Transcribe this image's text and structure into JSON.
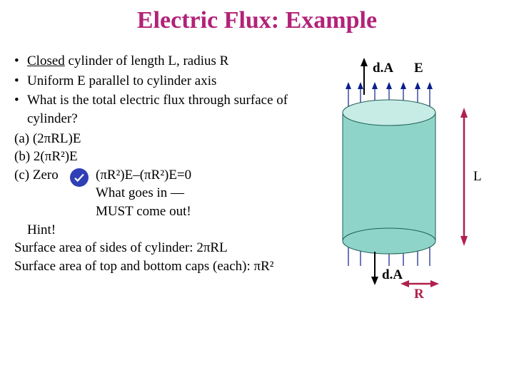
{
  "title": {
    "text": "Electric Flux: Example",
    "color": "#b22278"
  },
  "bullets": [
    {
      "pre": "Closed",
      "rest": " cylinder of length L, radius R"
    },
    {
      "pre": "",
      "rest": "Uniform E parallel to cylinder axis"
    },
    {
      "pre": "",
      "rest": "What is the total electric flux through surface of cylinder?"
    }
  ],
  "options": {
    "a": "(a) (2πRL)E",
    "b": "(b) 2(πR²)E",
    "c_label": "(c) Zero",
    "c_explain1": "(πR²)E–(πR²)E=0",
    "c_explain2": "What goes in —",
    "c_explain3": "MUST come out!"
  },
  "hint": {
    "label": "Hint!",
    "line1": "Surface area of sides of cylinder: 2πRL",
    "line2": "Surface area of top and bottom caps (each): πR²"
  },
  "diagram": {
    "dA_top": "d.A",
    "E": "E",
    "dA_bottom": "d.A",
    "R": "R",
    "L": "L",
    "colors": {
      "cylinder_side": "#8fd4c9",
      "cylinder_top_fill": "#c6ece5",
      "cylinder_stroke": "#1f5f55",
      "field_lines": "#0a1f8a",
      "arrow_black": "#000000",
      "R_color": "#b0204c",
      "circle_fill": "#2f3fb5",
      "check_stroke": "#ffffff"
    }
  },
  "underline_color": "#000000"
}
